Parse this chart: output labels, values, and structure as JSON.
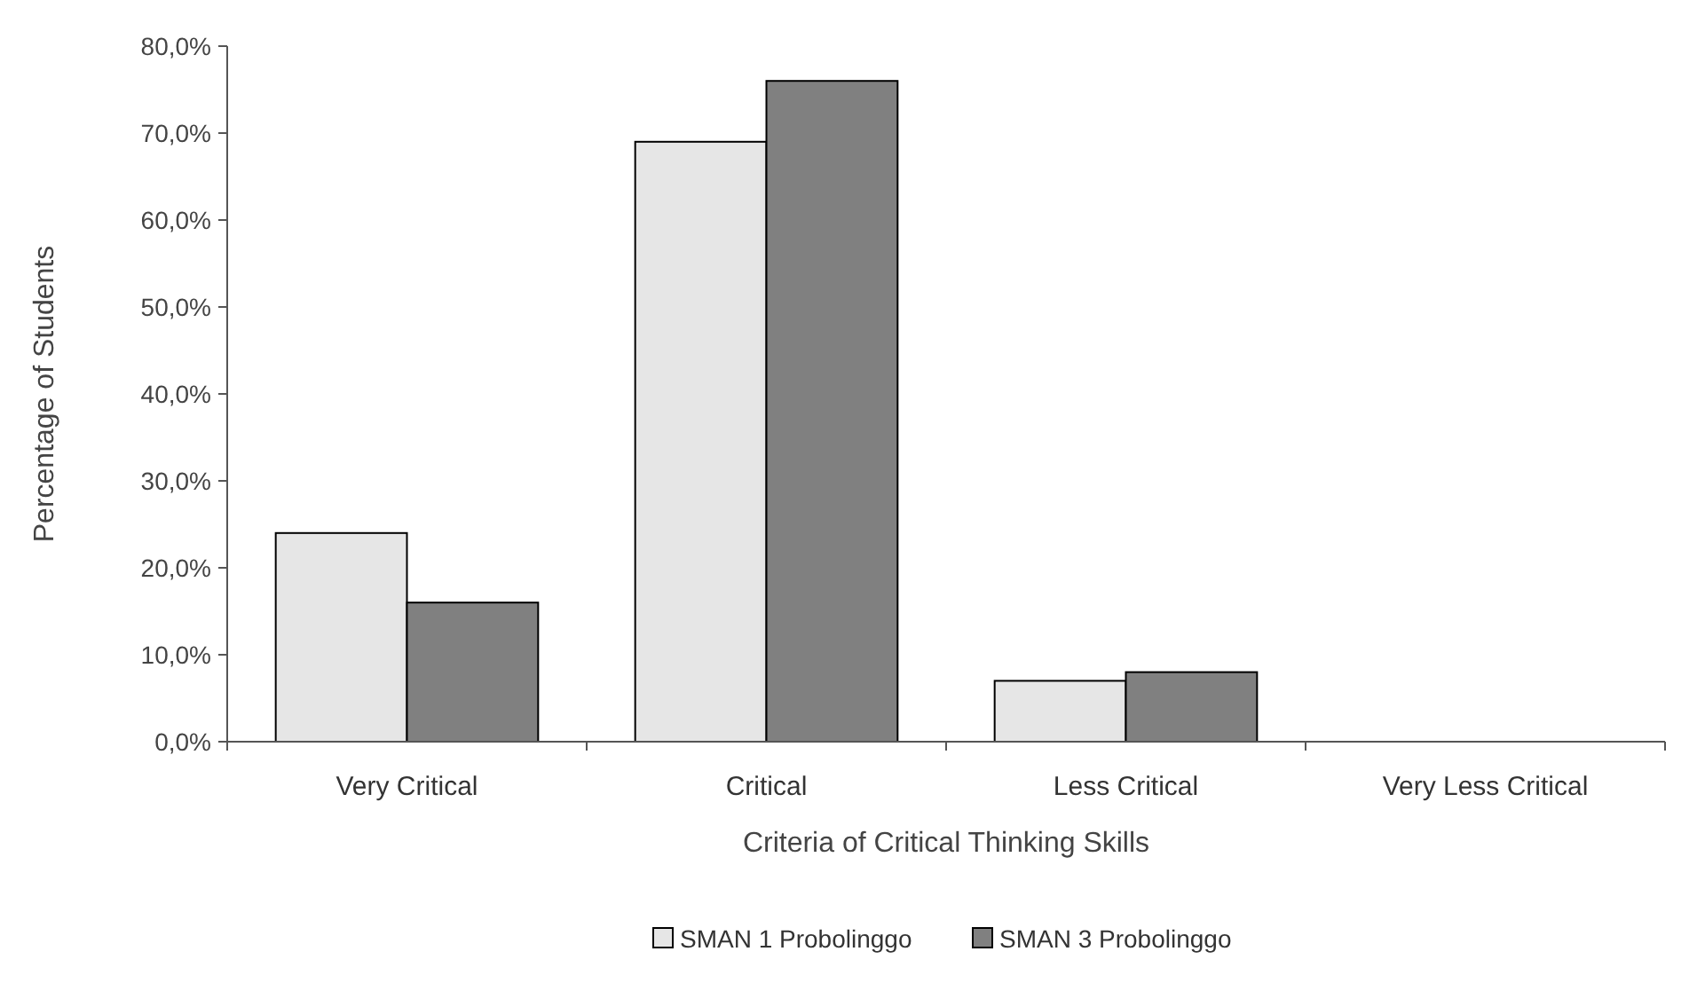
{
  "chart_data": {
    "type": "bar",
    "xlabel": "Criteria of Critical Thinking Skills",
    "ylabel": "Percentage of Students",
    "categories": [
      "Very Critical",
      "Critical",
      "Less Critical",
      "Very Less Critical"
    ],
    "series": [
      {
        "name": "SMAN 1 Probolinggo",
        "color": "#e6e6e6",
        "values": [
          24,
          69,
          7,
          0
        ]
      },
      {
        "name": "SMAN 3 Probolinggo",
        "color": "#808080",
        "values": [
          16,
          76,
          8,
          0
        ]
      }
    ],
    "ylim": [
      0,
      80
    ],
    "yticks": [
      {
        "value": 0,
        "label": "0,0%"
      },
      {
        "value": 10,
        "label": "10,0%"
      },
      {
        "value": 20,
        "label": "20,0%"
      },
      {
        "value": 30,
        "label": "30,0%"
      },
      {
        "value": 40,
        "label": "40,0%"
      },
      {
        "value": 50,
        "label": "50,0%"
      },
      {
        "value": 60,
        "label": "60,0%"
      },
      {
        "value": 70,
        "label": "70,0%"
      },
      {
        "value": 80,
        "label": "80,0%"
      }
    ],
    "grid": false,
    "legend": "bottom"
  }
}
